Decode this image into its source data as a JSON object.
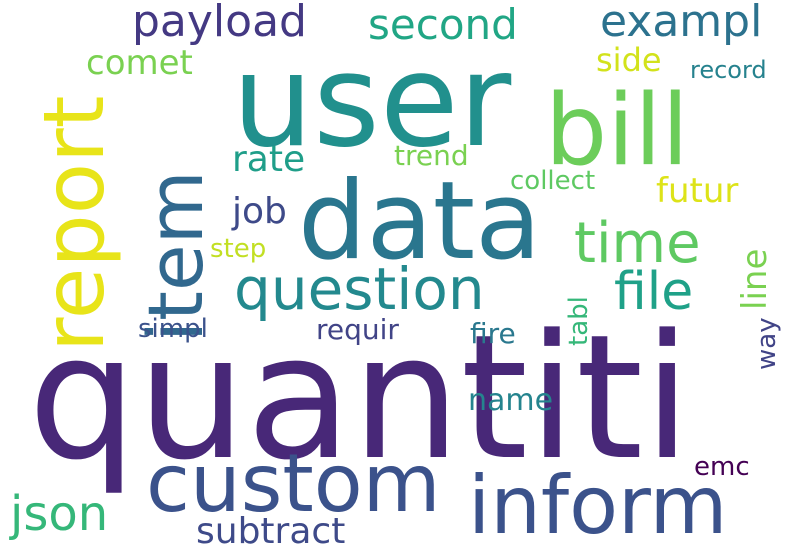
{
  "words": {
    "user": "user",
    "quantiti": "quantiti",
    "data": "data",
    "bill": "bill",
    "report": "report",
    "item": "item",
    "custom": "custom",
    "inform": "inform",
    "question": "question",
    "time": "time",
    "payload": "payload",
    "second": "second",
    "exampl": "exampl",
    "comet": "comet",
    "side": "side",
    "record": "record",
    "rate": "rate",
    "trend": "trend",
    "collect": "collect",
    "futur": "futur",
    "job": "job",
    "step": "step",
    "file": "file",
    "line": "line",
    "simpl": "simpl",
    "requir": "requir",
    "fire": "fire",
    "tabl": "tabl",
    "way": "way",
    "name": "name",
    "emc": "emc",
    "json": "json",
    "subtract": "subtract"
  },
  "colors": {
    "user": "#21908d",
    "quantiti": "#482878",
    "data": "#2a768e",
    "bill": "#6ccd5a",
    "report": "#e8e419",
    "item": "#31688e",
    "custom": "#3b528b",
    "inform": "#3b528b",
    "question": "#23898e",
    "time": "#5ec962",
    "payload": "#443983",
    "second": "#21a685",
    "exampl": "#2c728e",
    "comet": "#7ad151",
    "side": "#d2e21b",
    "record": "#26828e",
    "rate": "#1f9e89",
    "trend": "#7ad151",
    "collect": "#5ec962",
    "futur": "#dde318",
    "job": "#3e4a89",
    "step": "#c2df23",
    "file": "#1fa188",
    "line": "#7ad151",
    "simpl": "#3b528b",
    "requir": "#414487",
    "fire": "#2a788e",
    "tabl": "#35b779",
    "way": "#414487",
    "name": "#25848e",
    "emc": "#440154",
    "json": "#35b779",
    "subtract": "#3e4a89"
  }
}
